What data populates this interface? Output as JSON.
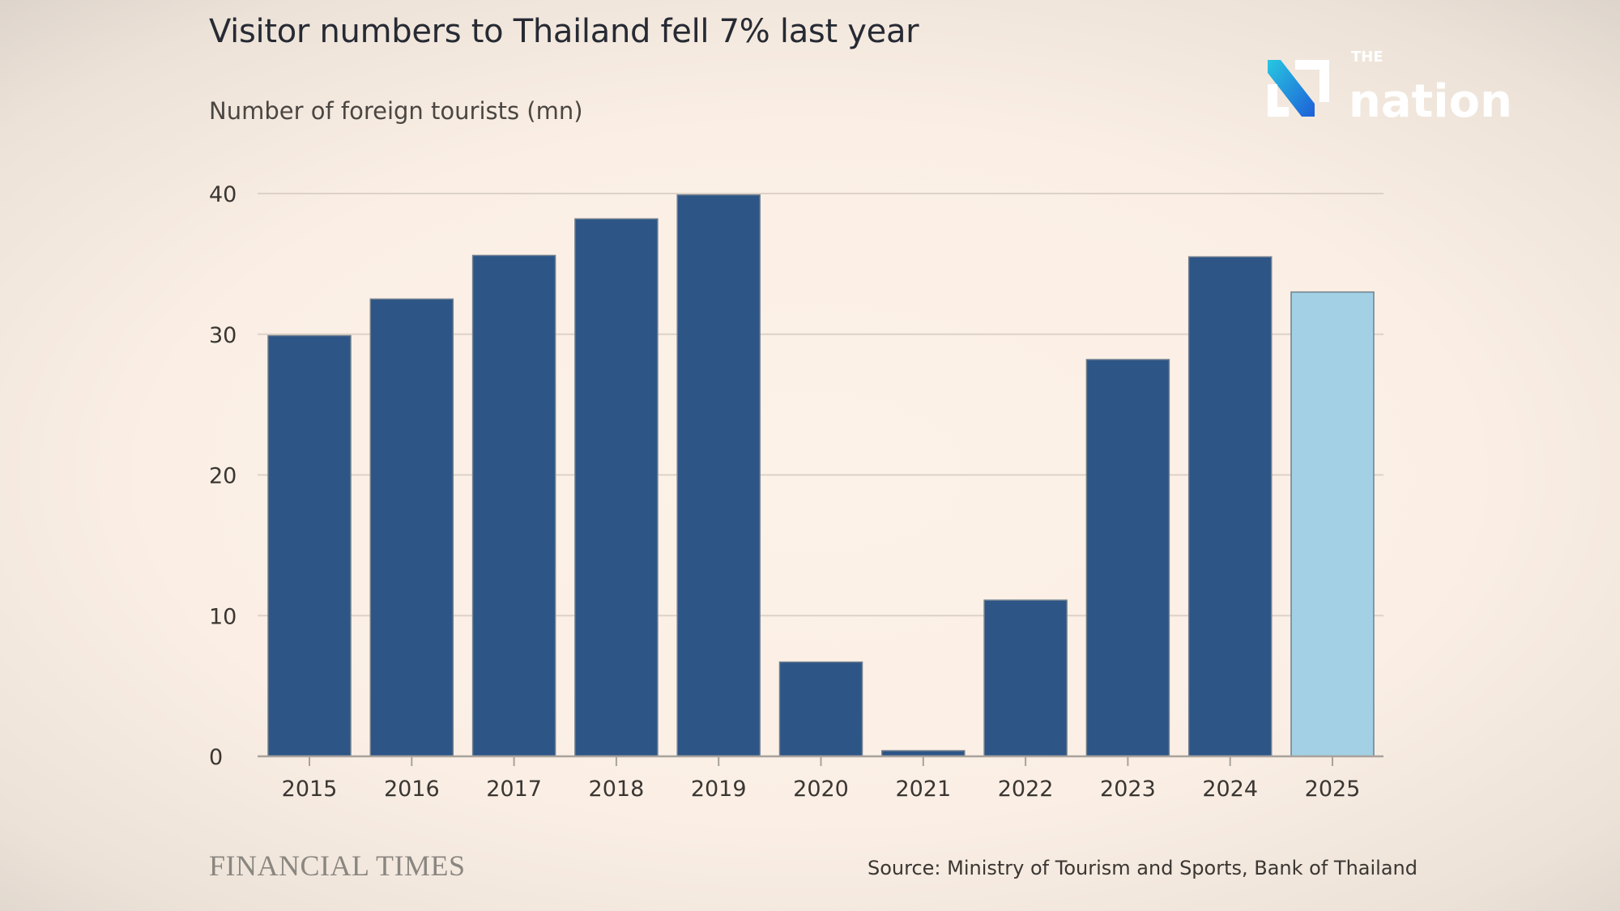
{
  "header": {
    "title": "Visitor numbers to Thailand fell 7% last year",
    "subtitle": "Number of foreign tourists (mn)"
  },
  "footer": {
    "brand": "FINANCIAL TIMES",
    "source": "Source: Ministry of Tourism and Sports, Bank of Thailand"
  },
  "watermark": {
    "logo_text_small": "THE",
    "logo_text": "nation"
  },
  "chart_data": {
    "type": "bar",
    "title": "Visitor numbers to Thailand fell 7% last year",
    "ylabel": "Number of foreign tourists (mn)",
    "xlabel": "",
    "categories": [
      "2015",
      "2016",
      "2017",
      "2018",
      "2019",
      "2020",
      "2021",
      "2022",
      "2023",
      "2024",
      "2025"
    ],
    "values": [
      29.9,
      32.5,
      35.6,
      38.2,
      39.9,
      6.7,
      0.4,
      11.1,
      28.2,
      35.5,
      33.0
    ],
    "ylim": [
      0,
      40
    ],
    "yticks": [
      "0",
      "10",
      "20",
      "30",
      "40"
    ],
    "grid": true,
    "colors": {
      "bar": "#2d5586",
      "highlight": "#a3d0e4",
      "grid": "#ddd2c7",
      "axis": "#a8a29c"
    },
    "highlight_category": "2025"
  }
}
